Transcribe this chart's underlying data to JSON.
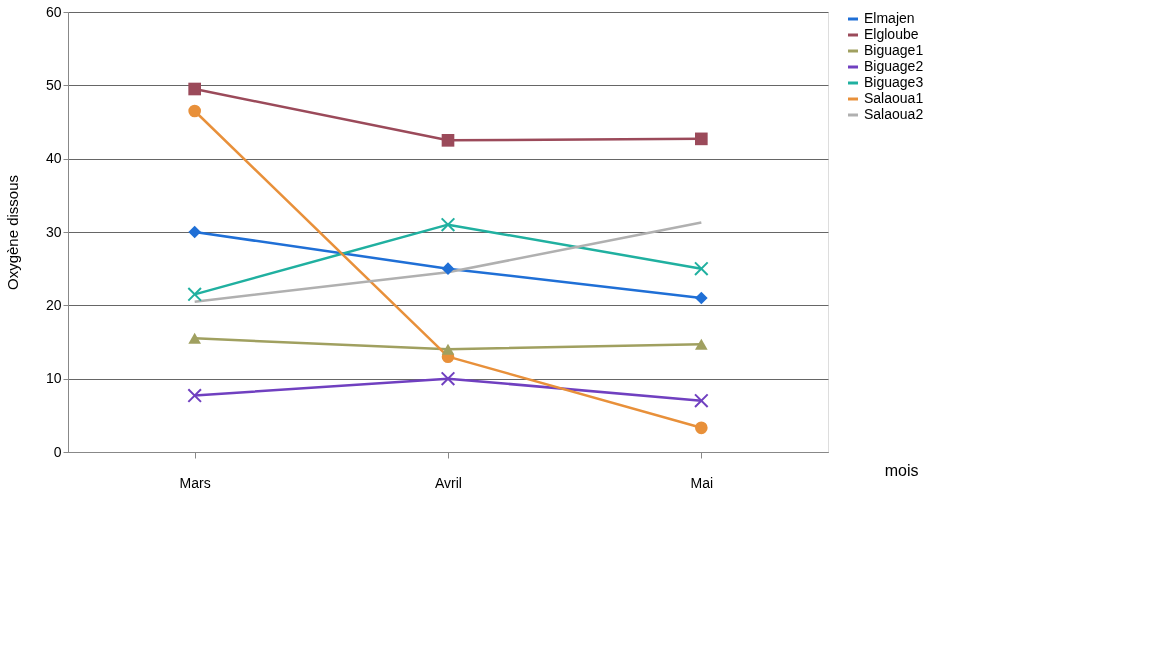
{
  "chart_data": {
    "type": "line",
    "ylabel": "Oxygène dissous",
    "xlabel": "mois",
    "categories": [
      "Mars",
      "Avril",
      "Mai"
    ],
    "ylim": [
      0,
      60
    ],
    "yticks": [
      0,
      10,
      20,
      30,
      40,
      50,
      60
    ],
    "grid": "y",
    "legend": "right",
    "series": [
      {
        "name": "Elmajen",
        "color": "#1f6fd6",
        "marker": "diamond",
        "values": [
          30,
          25,
          21
        ]
      },
      {
        "name": "Elgloube",
        "color": "#9b4a5a",
        "marker": "square",
        "values": [
          49.5,
          42.5,
          42.7
        ]
      },
      {
        "name": "Biguage1",
        "color": "#a0a060",
        "marker": "triangle",
        "values": [
          15.5,
          14,
          14.7
        ]
      },
      {
        "name": "Biguage2",
        "color": "#7040c0",
        "marker": "cross",
        "values": [
          7.7,
          10,
          7
        ]
      },
      {
        "name": "Biguage3",
        "color": "#20b0a0",
        "marker": "cross",
        "values": [
          21.5,
          31,
          25
        ]
      },
      {
        "name": "Salaoua1",
        "color": "#e8903a",
        "marker": "circle",
        "values": [
          46.5,
          13,
          3.3
        ]
      },
      {
        "name": "Salaoua2",
        "color": "#b0b0b0",
        "marker": "none",
        "values": [
          20.5,
          24.5,
          31.3
        ]
      }
    ]
  }
}
